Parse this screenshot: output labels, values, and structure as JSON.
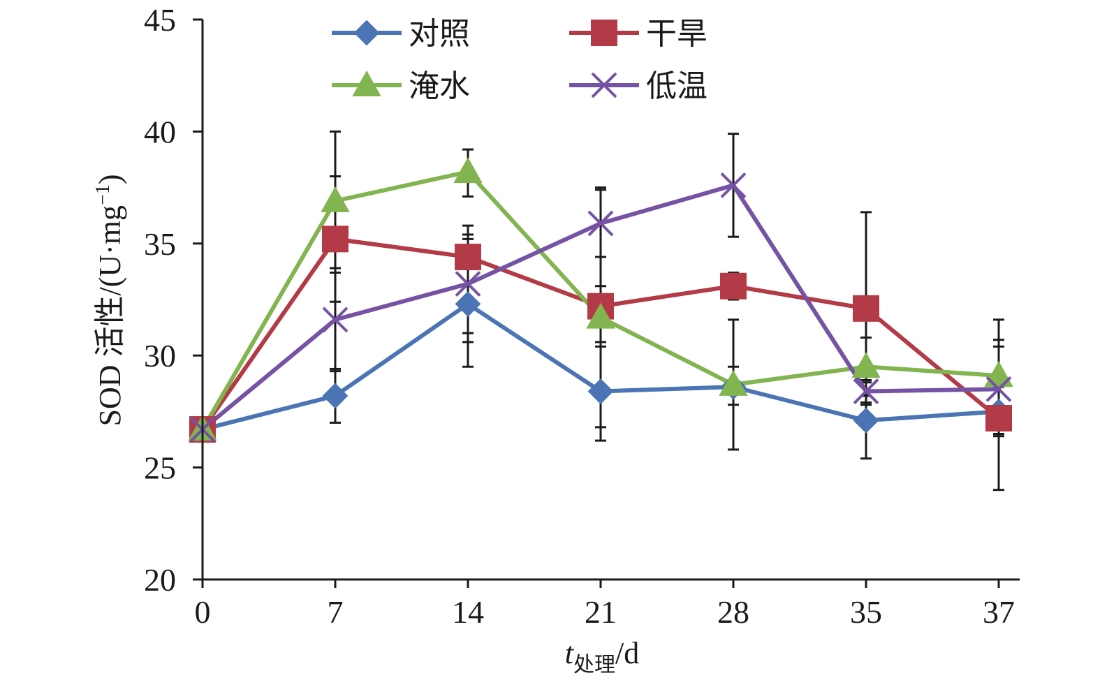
{
  "chart_data": {
    "type": "line",
    "title": "",
    "x": [
      0,
      7,
      14,
      21,
      28,
      35,
      37
    ],
    "x_tick_labels": [
      "0",
      "7",
      "14",
      "21",
      "28",
      "35",
      "37"
    ],
    "xlabel": {
      "prefix": "t",
      "subscript": "处理",
      "suffix": "/d"
    },
    "ylabel": {
      "text": "SOD 活性/(U·mg",
      "sup": "−1",
      "close": ")"
    },
    "ylim": [
      20,
      45
    ],
    "y_ticks": [
      20,
      25,
      30,
      35,
      40,
      45
    ],
    "legend_position": "top",
    "series": [
      {
        "name": "对照",
        "color": "#4A74B4",
        "marker": "diamond",
        "values": [
          26.7,
          28.2,
          32.3,
          28.4,
          28.6,
          27.1,
          27.5
        ],
        "err_low": [
          26.7,
          27.0,
          29.5,
          26.2,
          25.8,
          25.4,
          26.4
        ],
        "err_high": [
          26.7,
          29.4,
          35.2,
          30.6,
          31.6,
          28.8,
          28.6
        ]
      },
      {
        "name": "干旱",
        "color": "#B33B47",
        "marker": "square",
        "values": [
          26.7,
          35.2,
          34.4,
          32.2,
          33.1,
          32.1,
          27.2
        ],
        "err_low": [
          26.7,
          32.4,
          30.6,
          26.8,
          32.5,
          27.8,
          24.0
        ],
        "err_high": [
          26.7,
          38.0,
          35.8,
          37.5,
          33.7,
          36.4,
          30.4
        ]
      },
      {
        "name": "淹水",
        "color": "#82B450",
        "marker": "triangle",
        "values": [
          26.7,
          36.9,
          38.2,
          31.7,
          28.7,
          29.5,
          29.1
        ],
        "err_low": [
          26.7,
          33.7,
          37.1,
          30.4,
          27.8,
          28.2,
          27.7
        ],
        "err_high": [
          26.7,
          40.0,
          39.2,
          33.1,
          29.5,
          30.8,
          30.7
        ]
      },
      {
        "name": "低温",
        "color": "#7552A3",
        "marker": "x",
        "values": [
          26.7,
          31.6,
          33.2,
          35.9,
          37.6,
          28.4,
          28.5
        ],
        "err_low": [
          26.7,
          29.3,
          31.0,
          34.4,
          35.3,
          27.9,
          26.5
        ],
        "err_high": [
          26.7,
          33.9,
          35.4,
          37.4,
          39.9,
          28.9,
          31.6
        ]
      }
    ]
  }
}
